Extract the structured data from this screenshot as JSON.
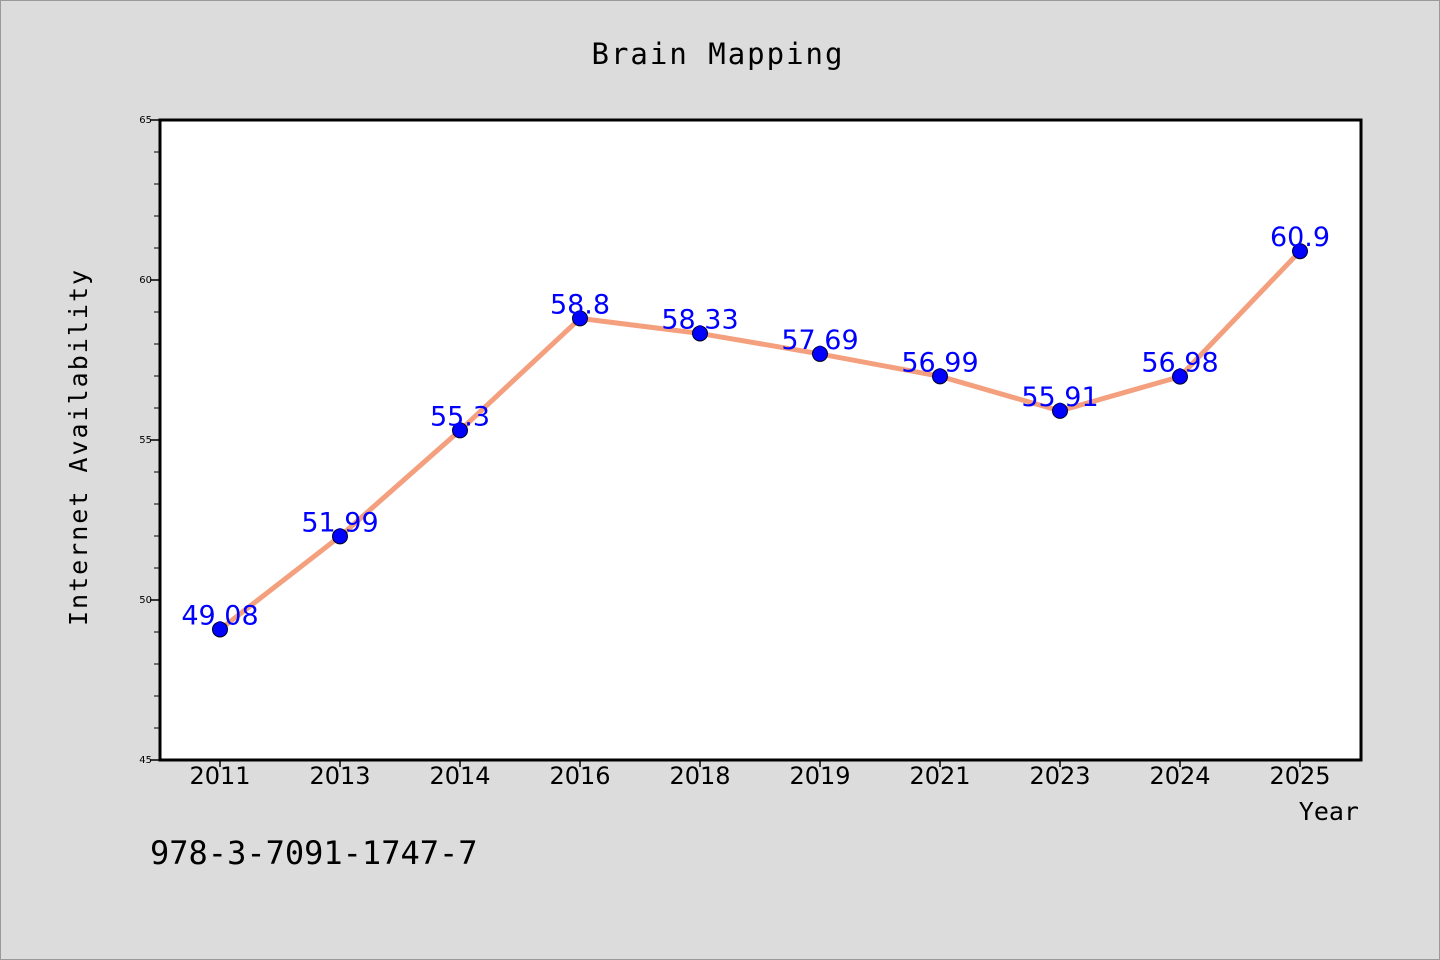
{
  "chart_data": {
    "type": "line",
    "title": "Brain Mapping",
    "xlabel": "Year",
    "ylabel": "Internet Availability",
    "categories": [
      "2011",
      "2013",
      "2014",
      "2016",
      "2018",
      "2019",
      "2021",
      "2023",
      "2024",
      "2025"
    ],
    "series": [
      {
        "values": [
          49.08,
          51.99,
          55.3,
          58.8,
          58.33,
          57.69,
          56.99,
          55.91,
          56.98,
          60.9
        ],
        "data_labels": [
          "49.08",
          "51.99",
          "55.3",
          "58.8",
          "58.33",
          "57.69",
          "56.99",
          "55.91",
          "56.98",
          "60.9"
        ],
        "line_color": "#f4a07e",
        "marker_color": "#0000ff",
        "label_color": "#0000ff"
      }
    ],
    "ylim": [
      45,
      65
    ],
    "y_ticks": [
      "45",
      "50",
      "55",
      "60",
      "65"
    ],
    "grid": false,
    "legend": "none"
  },
  "annotation": {
    "text": "978-3-7091-1747-7"
  },
  "colors": {
    "background": "#dcdcdc",
    "plot_background": "#ffffff",
    "axis": "#000000"
  }
}
